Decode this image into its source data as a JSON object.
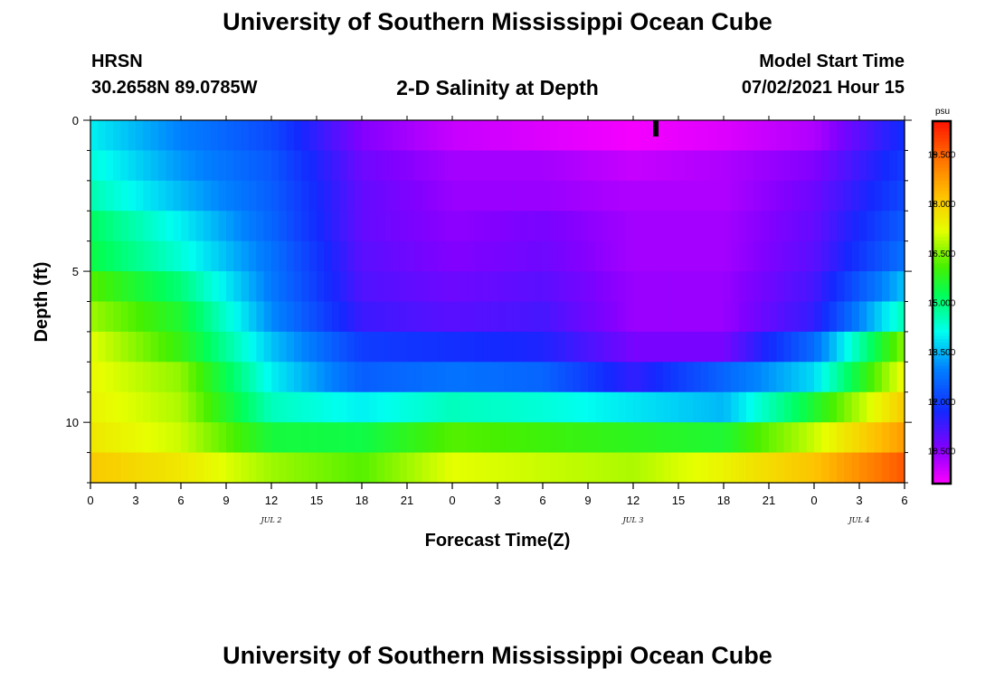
{
  "header": {
    "title_top": "University of Southern Mississippi Ocean Cube",
    "station": "HRSN",
    "coords": "30.2658N  89.0785W",
    "plot_title": "2-D Salinity at Depth",
    "model_start_label": "Model Start Time",
    "model_start_value": "07/02/2021 Hour 15",
    "title_bottom": "University of Southern Mississippi Ocean Cube"
  },
  "chart_data": {
    "type": "heatmap",
    "title": "2-D Salinity at Depth",
    "xlabel": "Forecast Time(Z)",
    "ylabel": "Depth (ft)",
    "x_hours_range": [
      0,
      54
    ],
    "x_tick_labels": [
      "0",
      "3",
      "6",
      "9",
      "12",
      "15",
      "18",
      "21",
      "0",
      "3",
      "6",
      "9",
      "12",
      "15",
      "18",
      "21",
      "0",
      "3",
      "6"
    ],
    "date_labels": [
      {
        "text": "JUL 2",
        "hour": 12
      },
      {
        "text": "JUL 3",
        "hour": 36
      },
      {
        "text": "JUL 4",
        "hour": 51
      }
    ],
    "y_range_ft": [
      0,
      12
    ],
    "y_tick_labels": [
      "0",
      "5",
      "10"
    ],
    "y_tick_values": [
      0,
      5,
      10
    ],
    "colorbar": {
      "unit": "psu",
      "range": [
        9.5,
        20.5
      ],
      "tick_labels": [
        "19.500",
        "18.000",
        "16.500",
        "15.000",
        "13.500",
        "12.000",
        "10.500"
      ],
      "tick_values": [
        19.5,
        18.0,
        16.5,
        15.0,
        13.5,
        12.0,
        10.5
      ]
    },
    "depth_layers_ft": [
      0.5,
      1.5,
      2.5,
      3.5,
      4.5,
      5.5,
      6.5,
      7.5,
      8.5,
      9.5,
      10.5,
      11.5
    ],
    "time_hours": [
      0,
      6,
      12,
      18,
      24,
      30,
      36,
      42,
      48,
      54
    ],
    "salinity_psu": [
      [
        14.0,
        13.0,
        12.2,
        10.6,
        10.0,
        9.8,
        9.6,
        9.8,
        10.2,
        11.8
      ],
      [
        14.3,
        13.2,
        12.4,
        10.8,
        10.3,
        10.3,
        10.0,
        10.2,
        10.6,
        12.0
      ],
      [
        14.6,
        13.5,
        12.5,
        10.9,
        10.4,
        10.4,
        10.2,
        10.2,
        10.8,
        12.2
      ],
      [
        15.2,
        14.0,
        12.6,
        10.9,
        10.5,
        10.7,
        10.3,
        10.3,
        10.9,
        12.5
      ],
      [
        15.4,
        14.3,
        12.8,
        11.0,
        10.6,
        10.8,
        10.3,
        10.3,
        11.0,
        12.8
      ],
      [
        16.2,
        15.0,
        12.9,
        11.1,
        10.8,
        11.0,
        10.4,
        10.4,
        11.2,
        13.6
      ],
      [
        16.7,
        15.6,
        13.1,
        11.3,
        11.0,
        11.2,
        10.4,
        10.4,
        11.4,
        14.6
      ],
      [
        17.2,
        15.9,
        13.6,
        12.0,
        11.8,
        11.6,
        10.7,
        10.7,
        12.7,
        16.6
      ],
      [
        17.3,
        16.6,
        14.0,
        12.5,
        12.8,
        12.6,
        11.4,
        12.6,
        13.8,
        17.4
      ],
      [
        17.4,
        16.8,
        14.5,
        14.0,
        14.5,
        14.3,
        13.9,
        13.5,
        15.6,
        18.1
      ],
      [
        17.6,
        17.0,
        15.5,
        15.4,
        16.2,
        16.0,
        15.8,
        15.6,
        17.0,
        18.8
      ],
      [
        18.1,
        17.6,
        16.7,
        16.2,
        17.2,
        17.0,
        16.8,
        17.4,
        18.2,
        19.7
      ]
    ],
    "marker_hour": 37.5
  }
}
